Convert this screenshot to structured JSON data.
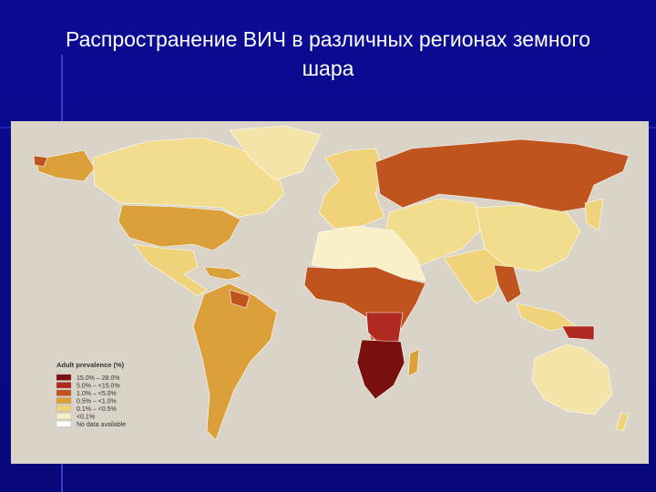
{
  "title": [
    "Распространение ВИЧ в различных регионах земного",
    "шара"
  ],
  "legend": {
    "title": "Adult prevalence (%)",
    "items": [
      {
        "label": "15.0% – 28.0%",
        "color": "#7a1010"
      },
      {
        "label": "5.0% – <15.0%",
        "color": "#b02a22"
      },
      {
        "label": "1.0% – <5.0%",
        "color": "#c0541f"
      },
      {
        "label": "0.5% – <1.0%",
        "color": "#dca03a"
      },
      {
        "label": "0.1% – <0.5%",
        "color": "#f0d27a"
      },
      {
        "label": "<0.1%",
        "color": "#faf0c8"
      },
      {
        "label": "No data available",
        "color": "#ffffff"
      }
    ]
  }
}
